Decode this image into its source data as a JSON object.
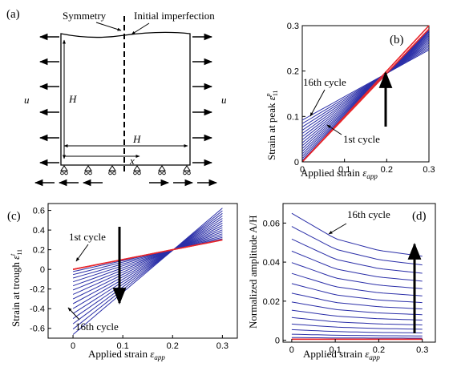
{
  "colors": {
    "cycle_lines": "#2b2fa8",
    "first_cycle": "#e8262b",
    "axes": "#000000"
  },
  "schematic": {
    "panel_label": "(a)",
    "symmetry_label": "Symmetry",
    "imperfection_label": "Initial imperfection",
    "u_left": "u",
    "u_right": "u",
    "height_label": "H",
    "width_label": "H",
    "x_label": "x"
  },
  "chart_data": [
    {
      "panel": "(b)",
      "type": "line",
      "ylabel": "Strain at peak ε₁₁ᵖ",
      "xlabel": "Applied strain ε_app",
      "xlim": [
        0,
        0.3
      ],
      "ylim": [
        0,
        0.3
      ],
      "xticks": [
        "0",
        "0.1",
        "0.2",
        "0.3"
      ],
      "yticks": [
        "0",
        "0.1",
        "0.2",
        "0.3"
      ],
      "grid": false,
      "series_count": 16,
      "first_cycle": {
        "x": [
          0,
          0.3
        ],
        "y": [
          0,
          0.3
        ]
      },
      "last_cycle": {
        "x": [
          0,
          0.3
        ],
        "y": [
          0.092,
          0.25
        ]
      },
      "pivot": {
        "x": 0.2,
        "y": 0.195
      },
      "annotations": [
        "16th cycle",
        "1st cycle"
      ]
    },
    {
      "panel": "(c)",
      "type": "line",
      "ylabel": "Strain at trough ε₁₁ᵗ",
      "xlabel": "Applied strain ε_app",
      "xlim": [
        -0.05,
        0.33
      ],
      "ylim": [
        -0.7,
        0.67
      ],
      "xticks": [
        "0",
        "0.1",
        "0.2",
        "0.3"
      ],
      "yticks": [
        "0.6",
        "0.4",
        "0.2",
        "0",
        "-0.2",
        "-0.4",
        "-0.6"
      ],
      "grid": false,
      "series_count": 16,
      "first_cycle": {
        "x": [
          0,
          0.3
        ],
        "y": [
          0,
          0.3
        ]
      },
      "last_cycle": {
        "x": [
          0,
          0.3
        ],
        "y": [
          -0.66,
          0.62
        ]
      },
      "pivot": {
        "x": 0.15,
        "y": 0.15
      },
      "annotations": [
        "1st cycle",
        "16th cycle"
      ]
    },
    {
      "panel": "(d)",
      "type": "line",
      "ylabel": "Normalized amplitude A/H",
      "xlabel": "Applied strain ε_app",
      "xlim": [
        -0.02,
        0.33
      ],
      "ylim": [
        -0.001,
        0.07
      ],
      "xticks": [
        "0",
        "0.1",
        "0.2",
        "0.3"
      ],
      "yticks": [
        "0",
        "0.02",
        "0.04",
        "0.06"
      ],
      "grid": false,
      "series_count": 16,
      "first_cycle": {
        "x": [
          0,
          0.3
        ],
        "y": [
          0.0005,
          0.0005
        ]
      },
      "last_cycle": {
        "x": [
          0,
          0.1,
          0.2,
          0.3
        ],
        "y": [
          0.065,
          0.052,
          0.046,
          0.043
        ]
      },
      "annotations": [
        "16th cycle"
      ]
    }
  ]
}
